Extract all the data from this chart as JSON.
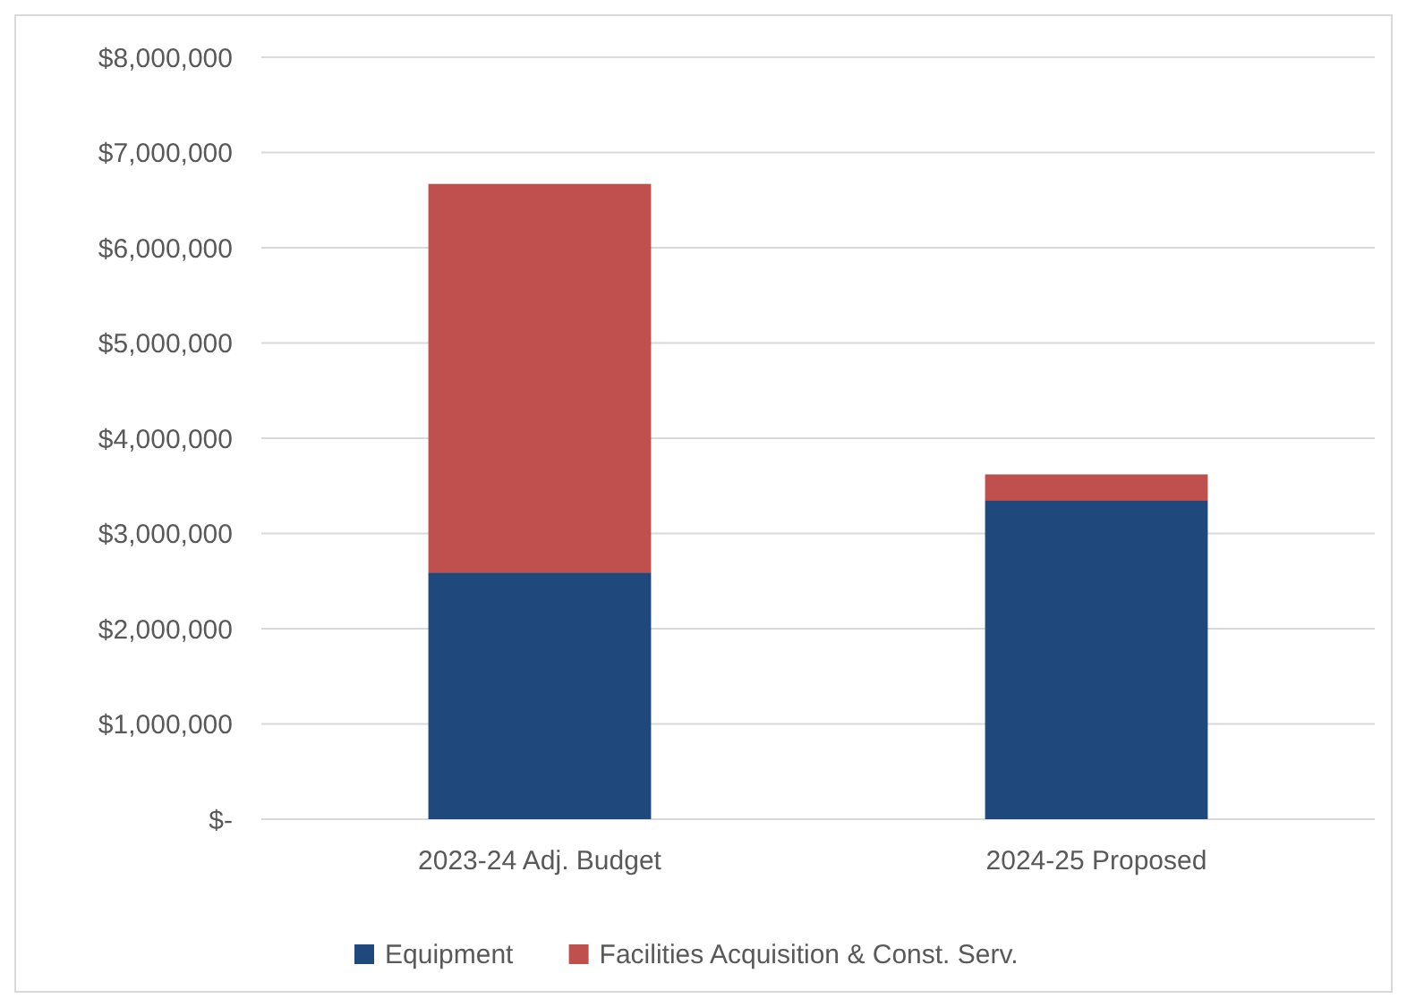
{
  "chart_data": {
    "type": "bar",
    "stacked": true,
    "categories": [
      "2023-24 Adj. Budget",
      "2024-25 Proposed"
    ],
    "series": [
      {
        "name": "Equipment",
        "color": "#1f497d",
        "values": [
          2590000,
          3350000
        ]
      },
      {
        "name": "Facilities Acquisition & Const. Serv.",
        "color": "#c0504d",
        "values": [
          4080000,
          270000
        ]
      }
    ],
    "ylim": [
      0,
      8000000
    ],
    "yticks": [
      {
        "value": 0,
        "label": "$-"
      },
      {
        "value": 1000000,
        "label": "$1,000,000"
      },
      {
        "value": 2000000,
        "label": "$2,000,000"
      },
      {
        "value": 3000000,
        "label": "$3,000,000"
      },
      {
        "value": 4000000,
        "label": "$4,000,000"
      },
      {
        "value": 5000000,
        "label": "$5,000,000"
      },
      {
        "value": 6000000,
        "label": "$6,000,000"
      },
      {
        "value": 7000000,
        "label": "$7,000,000"
      },
      {
        "value": 8000000,
        "label": "$8,000,000"
      }
    ],
    "grid": "y",
    "legend": "bottom"
  }
}
